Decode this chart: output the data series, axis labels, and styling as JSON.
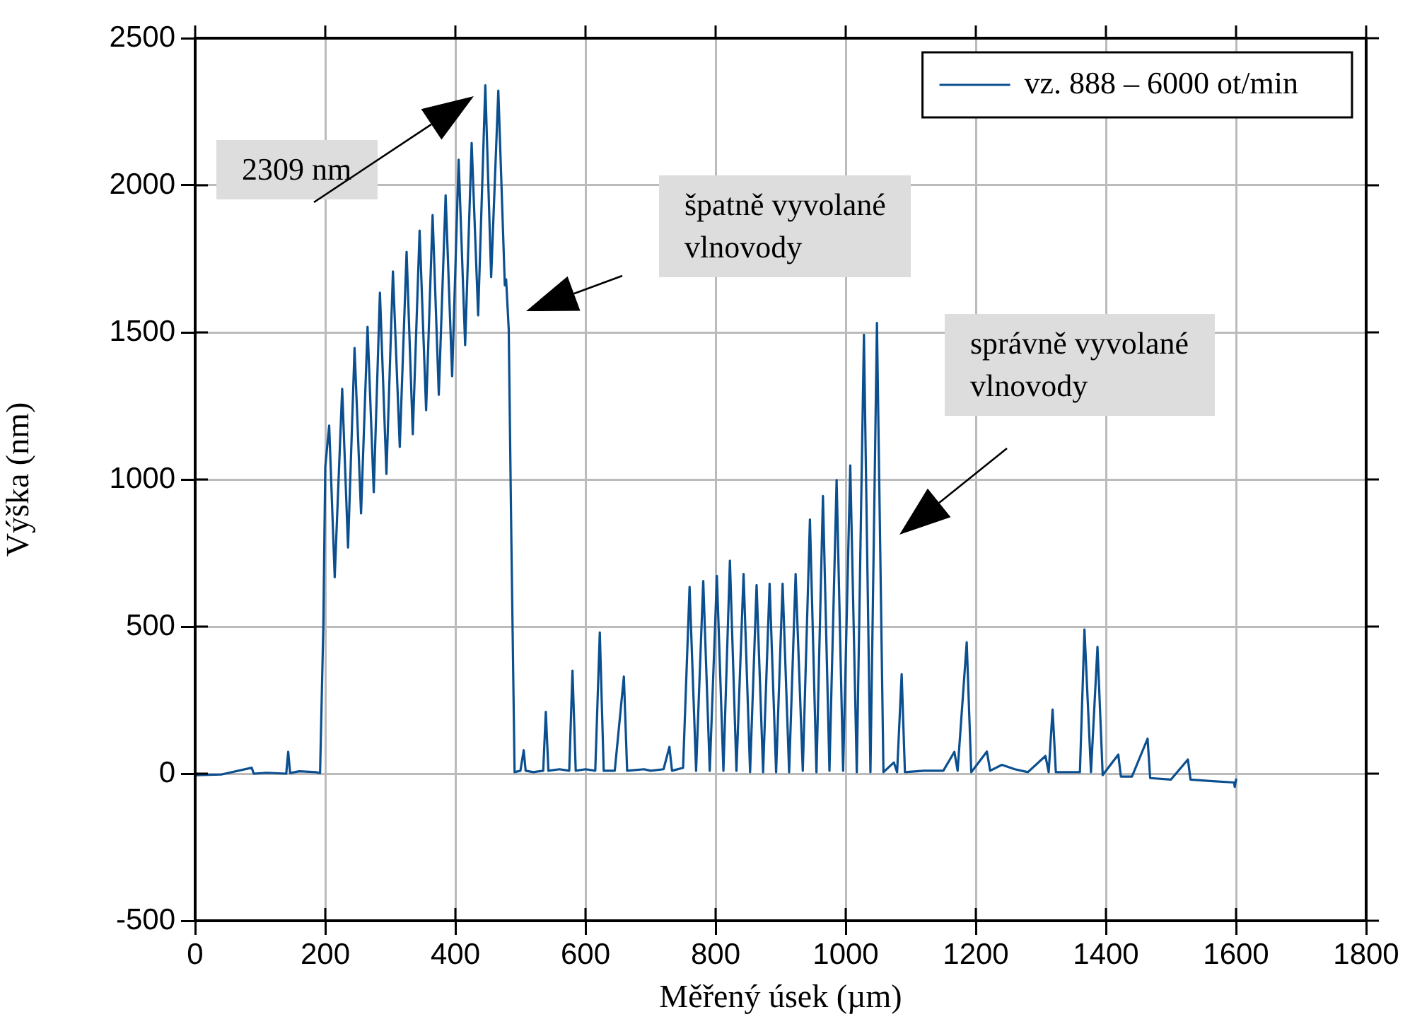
{
  "chart_data": {
    "type": "line",
    "xlabel": "Měřený úsek (µm)",
    "ylabel": "Výška (nm)",
    "xlim": [
      0,
      1800
    ],
    "xticks": [
      0,
      200,
      400,
      600,
      800,
      1000,
      1200,
      1400,
      1600,
      1800
    ],
    "ylim": [
      -500,
      2500
    ],
    "yticks": [
      -500,
      0,
      500,
      1000,
      1500,
      2000,
      2500
    ],
    "grid": true,
    "legend": "top right",
    "marker": "none",
    "line_style": "solid",
    "annotations": [
      "2309 nm",
      "špatně vyvolané vlnovody",
      "správně vyvolané vlnovody"
    ],
    "series": [
      {
        "name": "vz. 888 – 6000 ot/min",
        "color": "#0b4f8f",
        "x": [
          0,
          40,
          87,
          90,
          110,
          140,
          143,
          146,
          160,
          185,
          192,
          197,
          200,
          206,
          214.5,
          226,
          235,
          245,
          255,
          265,
          274.5,
          284,
          294,
          304,
          314.5,
          325,
          334.5,
          345,
          355,
          365,
          374.5,
          385,
          395,
          405,
          415,
          425,
          435,
          446,
          455,
          466,
          476,
          478,
          482,
          486,
          491,
          500,
          505,
          508,
          520,
          535,
          539,
          543,
          560,
          575,
          580,
          585,
          600,
          615,
          622,
          628,
          645,
          659,
          664,
          690,
          700,
          720,
          729,
          733,
          750,
          760,
          770,
          781,
          791,
          802,
          812,
          822,
          832,
          843,
          853,
          863,
          873,
          883,
          893,
          903,
          913,
          923,
          934,
          945,
          955,
          965,
          975,
          986,
          996,
          1007,
          1017,
          1028,
          1038,
          1048,
          1058,
          1074,
          1079,
          1086,
          1091,
          1120,
          1150,
          1167,
          1172,
          1186,
          1193,
          1217,
          1222,
          1240,
          1260,
          1280,
          1307,
          1312,
          1318,
          1323,
          1340,
          1360,
          1367,
          1377,
          1387,
          1395,
          1419,
          1423,
          1440,
          1464,
          1468,
          1500,
          1526,
          1530,
          1560,
          1597,
          1598,
          1600
        ],
        "values": [
          -5,
          -3,
          20,
          0,
          3,
          0,
          74,
          2,
          8,
          5,
          2,
          500,
          1043,
          1183,
          668,
          1308,
          769,
          1447,
          885,
          1519,
          957,
          1635,
          1019,
          1707,
          1111,
          1774,
          1154,
          1846,
          1236,
          1899,
          1288,
          1966,
          1351,
          2087,
          1457,
          2144,
          1558,
          2340,
          1688,
          2322,
          1660,
          1680,
          1510,
          800,
          5,
          10,
          80,
          10,
          5,
          10,
          210,
          10,
          15,
          10,
          350,
          10,
          15,
          10,
          480,
          10,
          10,
          330,
          10,
          15,
          10,
          15,
          91,
          10,
          20,
          635,
          10,
          655,
          10,
          672,
          10,
          724,
          10,
          679,
          5,
          641,
          5,
          646,
          5,
          646,
          5,
          679,
          10,
          864,
          5,
          944,
          10,
          998,
          10,
          1048,
          5,
          1492,
          5,
          1532,
          5,
          38,
          5,
          338,
          5,
          10,
          10,
          74,
          10,
          446,
          5,
          75,
          10,
          30,
          15,
          5,
          60,
          5,
          218,
          5,
          5,
          5,
          490,
          5,
          431,
          -5,
          65,
          -10,
          -10,
          119,
          -15,
          -20,
          48,
          -20,
          -25,
          -30,
          -45,
          -20
        ]
      }
    ]
  }
}
